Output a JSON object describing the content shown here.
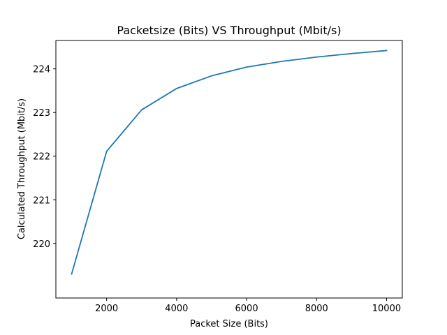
{
  "chart_data": {
    "type": "line",
    "title": "Packetsize (Bits) VS Throughput (Mbit/s)",
    "xlabel": "Packet Size (Bits)",
    "ylabel": "Calculated Throughput (Mbit/s)",
    "x": [
      1000,
      2000,
      3000,
      4000,
      5000,
      6000,
      7000,
      8000,
      9000,
      10000
    ],
    "series": [
      {
        "values": [
          219.3,
          222.11,
          223.06,
          223.55,
          223.84,
          224.04,
          224.17,
          224.27,
          224.35,
          224.42
        ],
        "color": "#1f77b4"
      }
    ],
    "xlim": [
      550,
      10450
    ],
    "ylim": [
      218.75,
      224.65
    ],
    "xticks": [
      2000,
      4000,
      6000,
      8000,
      10000
    ],
    "yticks": [
      220,
      221,
      222,
      223,
      224
    ],
    "grid": false,
    "legend": "none"
  }
}
